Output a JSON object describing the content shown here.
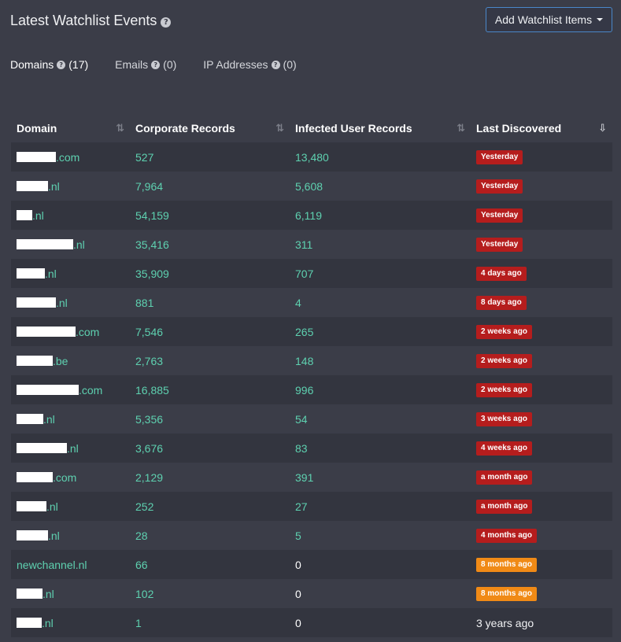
{
  "header": {
    "title": "Latest Watchlist Events",
    "add_button_label": "Add Watchlist Items"
  },
  "tabs": [
    {
      "label": "Domains",
      "count": "(17)"
    },
    {
      "label": "Emails",
      "count": "(0)"
    },
    {
      "label": "IP Addresses",
      "count": "(0)"
    }
  ],
  "table": {
    "columns": [
      "Domain",
      "Corporate Records",
      "Infected User Records",
      "Last Discovered"
    ],
    "rows": [
      {
        "domain": ".com",
        "corporate": "527",
        "infected": "13,480",
        "discovered": "Yesterday",
        "status": "red"
      },
      {
        "domain": ".nl",
        "corporate": "7,964",
        "infected": "5,608",
        "discovered": "Yesterday",
        "status": "red"
      },
      {
        "domain": ".nl",
        "corporate": "54,159",
        "infected": "6,119",
        "discovered": "Yesterday",
        "status": "red"
      },
      {
        "domain": ".nl",
        "corporate": "35,416",
        "infected": "311",
        "discovered": "Yesterday",
        "status": "red"
      },
      {
        "domain": ".nl",
        "corporate": "35,909",
        "infected": "707",
        "discovered": "4 days ago",
        "status": "red"
      },
      {
        "domain": ".nl",
        "corporate": "881",
        "infected": "4",
        "discovered": "8 days ago",
        "status": "red"
      },
      {
        "domain": ".com",
        "corporate": "7,546",
        "infected": "265",
        "discovered": "2 weeks ago",
        "status": "red"
      },
      {
        "domain": ".be",
        "corporate": "2,763",
        "infected": "148",
        "discovered": "2 weeks ago",
        "status": "red"
      },
      {
        "domain": ".com",
        "corporate": "16,885",
        "infected": "996",
        "discovered": "2 weeks ago",
        "status": "red"
      },
      {
        "domain": ".nl",
        "corporate": "5,356",
        "infected": "54",
        "discovered": "3 weeks ago",
        "status": "red"
      },
      {
        "domain": ".nl",
        "corporate": "3,676",
        "infected": "83",
        "discovered": "4 weeks ago",
        "status": "red"
      },
      {
        "domain": ".com",
        "corporate": "2,129",
        "infected": "391",
        "discovered": "a month ago",
        "status": "red"
      },
      {
        "domain": ".nl",
        "corporate": "252",
        "infected": "27",
        "discovered": "a month ago",
        "status": "red"
      },
      {
        "domain": ".nl",
        "corporate": "28",
        "infected": "5",
        "discovered": "4 months ago",
        "status": "red"
      },
      {
        "domain": "newchannel.nl",
        "corporate": "66",
        "infected": "0",
        "discovered": "8 months ago",
        "status": "orange"
      },
      {
        "domain": ".nl",
        "corporate": "102",
        "infected": "0",
        "discovered": "8 months ago",
        "status": "orange"
      },
      {
        "domain": ".nl",
        "corporate": "1",
        "infected": "0",
        "discovered": "3 years ago",
        "status": "none"
      }
    ]
  },
  "colors": {
    "background": "#3b3d48",
    "row_alt": "#33353f",
    "link_green": "#5ed1b0",
    "badge_red": "#b51d1d",
    "badge_orange": "#f08a16",
    "button_border": "#4a87c9"
  }
}
